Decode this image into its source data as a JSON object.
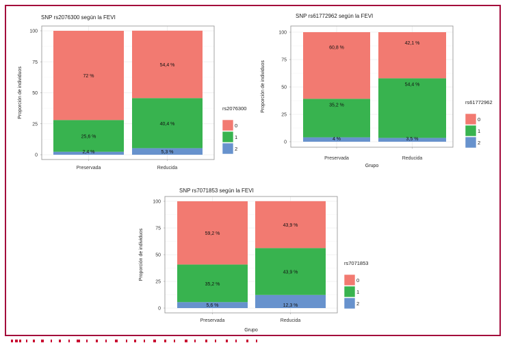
{
  "figure": {
    "border_color": "#a3093a",
    "caption_color": "#c9002f"
  },
  "chart_data": [
    {
      "type": "bar",
      "stacked": true,
      "title": "SNP rs2076300 según la FEVI",
      "xlabel": "",
      "ylabel": "Proporción de individuos",
      "categories": [
        "Preservada",
        "Reducida"
      ],
      "yticks": [
        "0",
        "25",
        "50",
        "75",
        "100"
      ],
      "ylim": [
        0,
        100
      ],
      "legend_title": "rs2076300",
      "legend_position": "right",
      "grid": true,
      "series": [
        {
          "name": "2",
          "color": "#6792cd",
          "values": [
            2.4,
            5.3
          ],
          "labels": [
            "2,4 %",
            "5,3 %"
          ]
        },
        {
          "name": "1",
          "color": "#38b34f",
          "values": [
            25.6,
            40.4
          ],
          "labels": [
            "25,6 %",
            "40,4 %"
          ]
        },
        {
          "name": "0",
          "color": "#f27a71",
          "values": [
            72,
            54.4
          ],
          "labels": [
            "72 %",
            "54,4 %"
          ]
        }
      ]
    },
    {
      "type": "bar",
      "stacked": true,
      "title": "SNP rs61772962 según la FEVI",
      "xlabel": "Grupo",
      "ylabel": "Proporción de individuos",
      "categories": [
        "Preservada",
        "Reducida"
      ],
      "yticks": [
        "0",
        "25",
        "50",
        "75",
        "100"
      ],
      "ylim": [
        0,
        100
      ],
      "legend_title": "rs61772962",
      "legend_position": "right",
      "grid": true,
      "series": [
        {
          "name": "2",
          "color": "#6792cd",
          "values": [
            4,
            3.5
          ],
          "labels": [
            "4 %",
            "3,5 %"
          ]
        },
        {
          "name": "1",
          "color": "#38b34f",
          "values": [
            35.2,
            54.4
          ],
          "labels": [
            "35,2 %",
            "54,4 %"
          ]
        },
        {
          "name": "0",
          "color": "#f27a71",
          "values": [
            60.8,
            42.1
          ],
          "labels": [
            "60,8 %",
            "42,1 %"
          ]
        }
      ]
    },
    {
      "type": "bar",
      "stacked": true,
      "title": "SNP rs7071853 según la FEVI",
      "xlabel": "Grupo",
      "ylabel": "Proporción de individuos",
      "categories": [
        "Preservada",
        "Reducida"
      ],
      "yticks": [
        "0",
        "25",
        "50",
        "75",
        "100"
      ],
      "ylim": [
        0,
        100
      ],
      "legend_title": "rs7071853",
      "legend_position": "right",
      "grid": true,
      "series": [
        {
          "name": "2",
          "color": "#6792cd",
          "values": [
            5.6,
            12.3
          ],
          "labels": [
            "5,6 %",
            "12,3 %"
          ]
        },
        {
          "name": "1",
          "color": "#38b34f",
          "values": [
            35.2,
            43.9
          ],
          "labels": [
            "35,2 %",
            "43,9 %"
          ]
        },
        {
          "name": "0",
          "color": "#f27a71",
          "values": [
            59.2,
            43.9
          ],
          "labels": [
            "59,2 %",
            "43,9 %"
          ]
        }
      ]
    }
  ]
}
